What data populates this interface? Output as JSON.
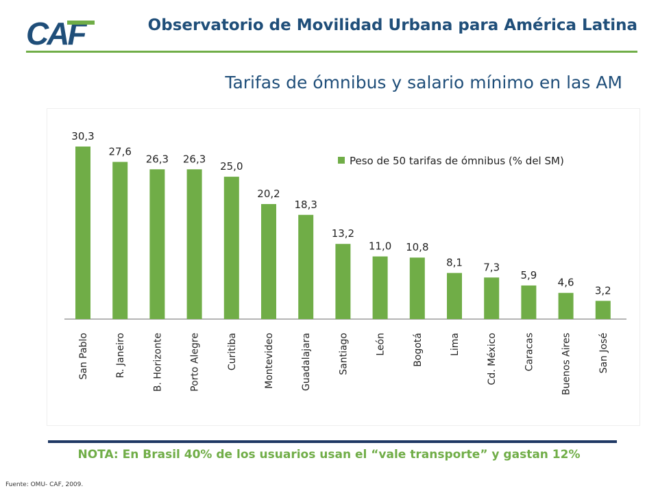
{
  "header": {
    "logo_text": "CAF",
    "title": "Observatorio de Movilidad Urbana para América Latina"
  },
  "slide_title": "Tarifas de ómnibus y salario mínimo en las AM",
  "chart_data": {
    "type": "bar",
    "categories": [
      "San Pablo",
      "R. Janeiro",
      "B. Horizonte",
      "Porto Alegre",
      "Curitiba",
      "Montevideo",
      "Guadalajara",
      "Santiago",
      "León",
      "Bogotá",
      "Lima",
      "Cd. México",
      "Caracas",
      "Buenos Aires",
      "San José"
    ],
    "series": [
      {
        "name": "Peso de 50 tarifas de ómnibus (% del SM)",
        "values": [
          30.3,
          27.6,
          26.3,
          26.3,
          25.0,
          20.2,
          18.3,
          13.2,
          11.0,
          10.8,
          8.1,
          7.3,
          5.9,
          4.6,
          3.2
        ],
        "labels": [
          "30,3",
          "27,6",
          "26,3",
          "26,3",
          "25,0",
          "20,2",
          "18,3",
          "13,2",
          "11,0",
          "10,8",
          "8,1",
          "7,3",
          "5,9",
          "4,6",
          "3,2"
        ]
      }
    ],
    "title": "",
    "xlabel": "",
    "ylabel": "",
    "ylim": [
      0,
      30.3
    ],
    "grid": false,
    "legend_position": "top-right",
    "bar_color": "#70ad47"
  },
  "note": "NOTA: En Brasil  40% de los usuarios usan el “vale transporte” y gastan 12%",
  "source": "Fuente: OMU- CAF, 2009.",
  "colors": {
    "brand_blue": "#1f4e79",
    "brand_green": "#70ad47",
    "note_rule": "#1f3864"
  }
}
